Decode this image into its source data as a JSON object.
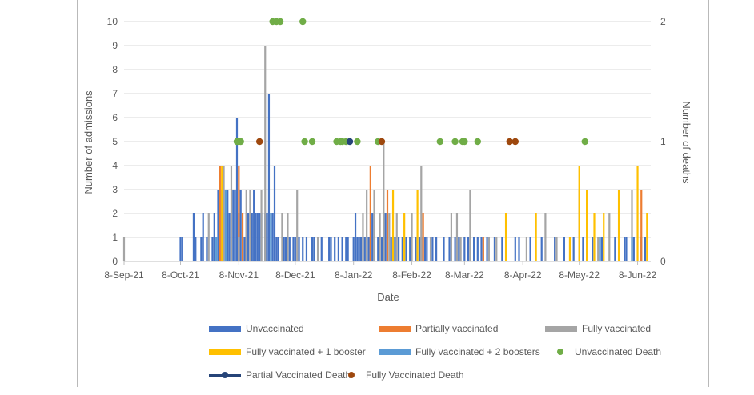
{
  "chart_data": {
    "type": "bar",
    "x_axis_title": "Date",
    "y_left_title": "Number of admissions",
    "y_right_title": "Number of deaths",
    "x_range": [
      "2021-09-08",
      "2022-06-15"
    ],
    "y_left_range": [
      0,
      10
    ],
    "y_right_range": [
      0,
      2
    ],
    "y_left_ticks": [
      "0",
      "1",
      "2",
      "3",
      "4",
      "5",
      "6",
      "7",
      "8",
      "9",
      "10"
    ],
    "y_right_ticks": [
      "0",
      "1",
      "2"
    ],
    "x_ticks": [
      {
        "date": "2021-09-08",
        "label": "8-Sep-21"
      },
      {
        "date": "2021-10-08",
        "label": "8-Oct-21"
      },
      {
        "date": "2021-11-08",
        "label": "8-Nov-21"
      },
      {
        "date": "2021-12-08",
        "label": "8-Dec-21"
      },
      {
        "date": "2022-01-08",
        "label": "8-Jan-22"
      },
      {
        "date": "2022-02-08",
        "label": "8-Feb-22"
      },
      {
        "date": "2022-03-08",
        "label": "8-Mar-22"
      },
      {
        "date": "2022-04-08",
        "label": "8-Apr-22"
      },
      {
        "date": "2022-05-08",
        "label": "8-May-22"
      },
      {
        "date": "2022-06-08",
        "label": "8-Jun-22"
      }
    ],
    "grid": true,
    "legend_position": "bottom",
    "colors": {
      "unvaccinated": "#4472c4",
      "partially_vaccinated": "#ed7d31",
      "fully_vaccinated": "#a5a5a5",
      "booster_1": "#ffc000",
      "booster_2": "#5b9bd5",
      "unvaccinated_death": "#70ad47",
      "partial_vaccinated_death": "#264478",
      "fully_vaccinated_death": "#9e480e"
    },
    "series": [
      {
        "key": "unvaccinated",
        "name": "Unvaccinated",
        "kind": "bar",
        "axis": "left",
        "points": [
          [
            "2021-10-08",
            1
          ],
          [
            "2021-10-09",
            1
          ],
          [
            "2021-10-15",
            2
          ],
          [
            "2021-10-16",
            1
          ],
          [
            "2021-10-19",
            1
          ],
          [
            "2021-10-20",
            2
          ],
          [
            "2021-10-22",
            1
          ],
          [
            "2021-10-25",
            1
          ],
          [
            "2021-10-26",
            2
          ],
          [
            "2021-10-28",
            3
          ],
          [
            "2021-10-30",
            3
          ],
          [
            "2021-10-31",
            2
          ],
          [
            "2021-11-01",
            3
          ],
          [
            "2021-11-02",
            3
          ],
          [
            "2021-11-03",
            2
          ],
          [
            "2021-11-05",
            3
          ],
          [
            "2021-11-06",
            3
          ],
          [
            "2021-11-07",
            6
          ],
          [
            "2021-11-08",
            2
          ],
          [
            "2021-11-09",
            3
          ],
          [
            "2021-11-11",
            1
          ],
          [
            "2021-11-12",
            2
          ],
          [
            "2021-11-13",
            2
          ],
          [
            "2021-11-15",
            2
          ],
          [
            "2021-11-16",
            3
          ],
          [
            "2021-11-17",
            2
          ],
          [
            "2021-11-18",
            2
          ],
          [
            "2021-11-19",
            2
          ],
          [
            "2021-11-20",
            2
          ],
          [
            "2021-11-22",
            2
          ],
          [
            "2021-11-23",
            2
          ],
          [
            "2021-11-24",
            7
          ],
          [
            "2021-11-26",
            2
          ],
          [
            "2021-11-27",
            4
          ],
          [
            "2021-11-28",
            1
          ],
          [
            "2021-11-29",
            1
          ],
          [
            "2021-12-02",
            1
          ],
          [
            "2021-12-03",
            1
          ],
          [
            "2021-12-05",
            1
          ],
          [
            "2021-12-07",
            1
          ],
          [
            "2021-12-08",
            1
          ],
          [
            "2021-12-10",
            1
          ],
          [
            "2021-12-12",
            1
          ],
          [
            "2021-12-14",
            1
          ],
          [
            "2021-12-17",
            1
          ],
          [
            "2021-12-18",
            1
          ],
          [
            "2021-12-22",
            1
          ],
          [
            "2021-12-26",
            1
          ],
          [
            "2021-12-27",
            1
          ],
          [
            "2021-12-29",
            1
          ],
          [
            "2021-12-31",
            1
          ],
          [
            "2022-01-02",
            1
          ],
          [
            "2022-01-04",
            1
          ],
          [
            "2022-01-05",
            1
          ],
          [
            "2022-01-08",
            1
          ],
          [
            "2022-01-09",
            2
          ],
          [
            "2022-01-10",
            1
          ],
          [
            "2022-01-11",
            1
          ],
          [
            "2022-01-12",
            1
          ],
          [
            "2022-01-14",
            1
          ],
          [
            "2022-01-16",
            1
          ],
          [
            "2022-01-17",
            1
          ],
          [
            "2022-01-18",
            2
          ],
          [
            "2022-01-19",
            1
          ],
          [
            "2022-01-21",
            1
          ],
          [
            "2022-01-23",
            1
          ],
          [
            "2022-01-25",
            2
          ],
          [
            "2022-01-28",
            1
          ],
          [
            "2022-01-30",
            1
          ],
          [
            "2022-02-01",
            1
          ],
          [
            "2022-02-03",
            1
          ],
          [
            "2022-02-05",
            1
          ],
          [
            "2022-02-07",
            1
          ],
          [
            "2022-02-10",
            1
          ],
          [
            "2022-02-12",
            1
          ],
          [
            "2022-02-13",
            1
          ],
          [
            "2022-02-15",
            1
          ],
          [
            "2022-02-16",
            1
          ],
          [
            "2022-02-19",
            1
          ],
          [
            "2022-02-21",
            1
          ],
          [
            "2022-02-25",
            1
          ],
          [
            "2022-02-28",
            1
          ],
          [
            "2022-03-03",
            1
          ],
          [
            "2022-03-05",
            1
          ],
          [
            "2022-03-08",
            1
          ],
          [
            "2022-03-10",
            1
          ],
          [
            "2022-03-13",
            1
          ],
          [
            "2022-03-15",
            1
          ],
          [
            "2022-03-17",
            1
          ],
          [
            "2022-03-20",
            1
          ],
          [
            "2022-03-24",
            1
          ],
          [
            "2022-03-28",
            1
          ],
          [
            "2022-04-04",
            1
          ],
          [
            "2022-04-06",
            1
          ],
          [
            "2022-04-12",
            1
          ],
          [
            "2022-04-18",
            1
          ],
          [
            "2022-04-25",
            1
          ],
          [
            "2022-04-30",
            1
          ],
          [
            "2022-05-05",
            1
          ],
          [
            "2022-05-10",
            1
          ],
          [
            "2022-05-15",
            1
          ],
          [
            "2022-05-20",
            1
          ],
          [
            "2022-05-27",
            1
          ],
          [
            "2022-06-01",
            1
          ],
          [
            "2022-06-02",
            1
          ],
          [
            "2022-06-06",
            1
          ],
          [
            "2022-06-10",
            1
          ],
          [
            "2022-06-12",
            1
          ]
        ]
      },
      {
        "key": "partially_vaccinated",
        "name": "Partially vaccinated",
        "kind": "bar",
        "axis": "left",
        "points": [
          [
            "2021-10-29",
            4
          ],
          [
            "2021-11-08",
            4
          ],
          [
            "2021-11-10",
            2
          ],
          [
            "2022-01-17",
            4
          ],
          [
            "2022-01-26",
            3
          ],
          [
            "2022-02-14",
            2
          ],
          [
            "2022-03-18",
            1
          ],
          [
            "2022-06-10",
            3
          ]
        ]
      },
      {
        "key": "fully_vaccinated",
        "name": "Fully vaccinated",
        "kind": "bar",
        "axis": "left",
        "points": [
          [
            "2021-09-08",
            1
          ],
          [
            "2021-10-23",
            2
          ],
          [
            "2021-10-31",
            4
          ],
          [
            "2021-11-04",
            4
          ],
          [
            "2021-11-08",
            1
          ],
          [
            "2021-11-12",
            3
          ],
          [
            "2021-11-14",
            3
          ],
          [
            "2021-11-20",
            3
          ],
          [
            "2021-11-22",
            9
          ],
          [
            "2021-12-01",
            2
          ],
          [
            "2021-12-04",
            2
          ],
          [
            "2021-12-09",
            3
          ],
          [
            "2021-12-20",
            1
          ],
          [
            "2022-01-13",
            2
          ],
          [
            "2022-01-15",
            3
          ],
          [
            "2022-01-19",
            3
          ],
          [
            "2022-01-22",
            2
          ],
          [
            "2022-01-24",
            5
          ],
          [
            "2022-01-27",
            2
          ],
          [
            "2022-01-31",
            2
          ],
          [
            "2022-02-08",
            2
          ],
          [
            "2022-02-13",
            4
          ],
          [
            "2022-02-18",
            1
          ],
          [
            "2022-03-01",
            2
          ],
          [
            "2022-03-04",
            2
          ],
          [
            "2022-03-06",
            1
          ],
          [
            "2022-03-11",
            3
          ],
          [
            "2022-03-21",
            1
          ],
          [
            "2022-03-25",
            1
          ],
          [
            "2022-04-10",
            1
          ],
          [
            "2022-04-20",
            2
          ],
          [
            "2022-04-26",
            1
          ],
          [
            "2022-05-08",
            3
          ],
          [
            "2022-05-18",
            1
          ],
          [
            "2022-05-24",
            2
          ],
          [
            "2022-06-05",
            3
          ]
        ]
      },
      {
        "key": "booster_1",
        "name": "Fully vaccinated + 1 booster",
        "kind": "bar",
        "axis": "left",
        "points": [
          [
            "2021-10-30",
            4
          ],
          [
            "2022-01-29",
            3
          ],
          [
            "2022-02-04",
            2
          ],
          [
            "2022-02-11",
            3
          ],
          [
            "2022-03-30",
            2
          ],
          [
            "2022-04-15",
            2
          ],
          [
            "2022-05-03",
            1
          ],
          [
            "2022-05-08",
            4
          ],
          [
            "2022-05-12",
            3
          ],
          [
            "2022-05-16",
            2
          ],
          [
            "2022-05-21",
            2
          ],
          [
            "2022-05-29",
            3
          ],
          [
            "2022-06-08",
            4
          ],
          [
            "2022-06-13",
            2
          ]
        ]
      },
      {
        "key": "booster_2",
        "name": "Fully vaccinated + 2 boosters",
        "kind": "bar",
        "axis": "left",
        "points": [
          [
            "2021-10-27",
            1
          ],
          [
            "2021-11-01",
            3
          ],
          [
            "2021-11-25",
            2
          ],
          [
            "2022-05-19",
            1
          ],
          [
            "2022-06-05",
            1
          ]
        ]
      },
      {
        "key": "unvaccinated_death",
        "name": "Unvaccinated Death",
        "kind": "dot",
        "axis": "right",
        "points": [
          [
            "2021-11-07",
            1
          ],
          [
            "2021-11-08",
            1
          ],
          [
            "2021-11-09",
            1
          ],
          [
            "2021-11-26",
            2
          ],
          [
            "2021-11-28",
            2
          ],
          [
            "2021-11-30",
            2
          ],
          [
            "2021-12-12",
            2
          ],
          [
            "2021-12-13",
            1
          ],
          [
            "2021-12-17",
            1
          ],
          [
            "2021-12-30",
            1
          ],
          [
            "2022-01-01",
            1
          ],
          [
            "2022-01-02",
            1
          ],
          [
            "2022-01-04",
            1
          ],
          [
            "2022-01-10",
            1
          ],
          [
            "2022-01-21",
            1
          ],
          [
            "2022-02-23",
            1
          ],
          [
            "2022-03-03",
            1
          ],
          [
            "2022-03-07",
            1
          ],
          [
            "2022-03-08",
            1
          ],
          [
            "2022-03-15",
            1
          ],
          [
            "2022-05-11",
            1
          ]
        ]
      },
      {
        "key": "partial_vaccinated_death",
        "name": "Partial Vaccinated Death",
        "kind": "line",
        "axis": "right",
        "points": [
          [
            "2022-01-06",
            1
          ]
        ]
      },
      {
        "key": "fully_vaccinated_death",
        "name": "Fully Vaccinated Death",
        "kind": "dot",
        "axis": "right",
        "points": [
          [
            "2021-11-19",
            1
          ],
          [
            "2022-01-23",
            1
          ],
          [
            "2022-04-01",
            1
          ],
          [
            "2022-04-04",
            1
          ]
        ]
      }
    ]
  }
}
